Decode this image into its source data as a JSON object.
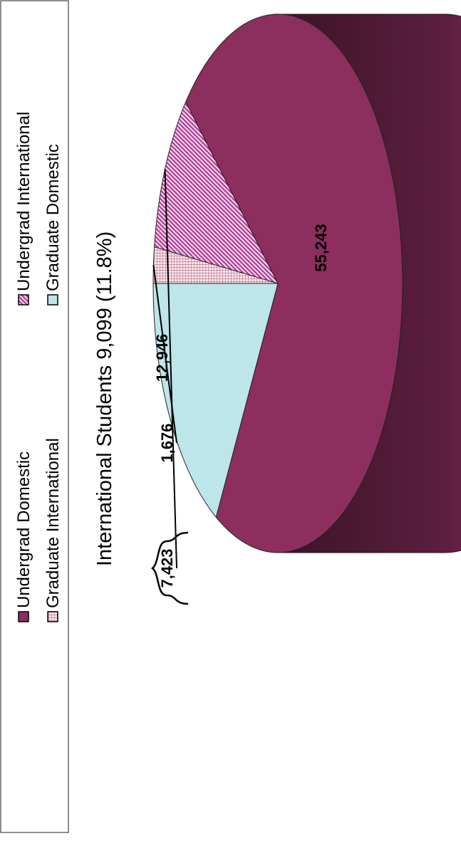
{
  "colors": {
    "undergrad_domestic": "#8C2E5E",
    "undergrad_domestic_side": "#6E2249",
    "depth_dark": "#3E1628",
    "undergrad_international": "#C052A8",
    "graduate_international": "#C06088",
    "graduate_domestic": "#BDE5EA"
  },
  "chart_data": {
    "type": "pie",
    "title": "",
    "annotation": "International Students 9,099 (11.8%)",
    "legend_position": "top",
    "slices": [
      {
        "label": "Undergrad Domestic",
        "value": 55243,
        "value_label": "55,243"
      },
      {
        "label": "Undergrad International",
        "value": 7423,
        "value_label": "7,423"
      },
      {
        "label": "Graduate International",
        "value": 1676,
        "value_label": "1,676"
      },
      {
        "label": "Graduate Domestic",
        "value": 12946,
        "value_label": "12,946"
      }
    ]
  }
}
